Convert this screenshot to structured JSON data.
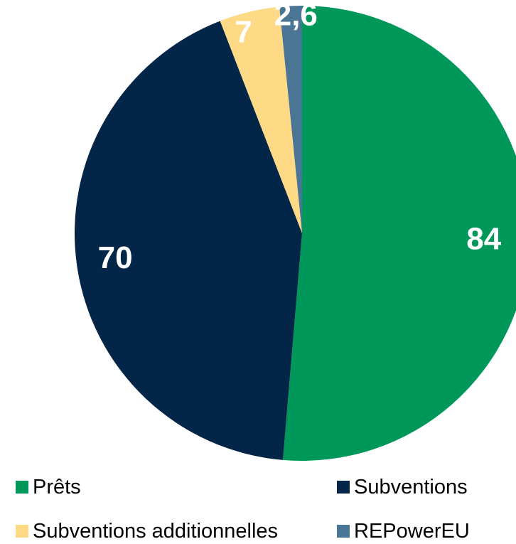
{
  "chart_data": {
    "type": "pie",
    "title": "",
    "legend_position": "bottom",
    "slices": [
      {
        "name": "Prêts",
        "value": 84,
        "label": "84",
        "color": "#00985A"
      },
      {
        "name": "Subventions",
        "value": 70,
        "label": "70",
        "color": "#032548"
      },
      {
        "name": "Subventions additionnelles",
        "value": 7,
        "label": "7",
        "color": "#FED986"
      },
      {
        "name": "REPowerEU",
        "value": 2.6,
        "label": "2,6",
        "color": "#4A7595"
      }
    ]
  }
}
